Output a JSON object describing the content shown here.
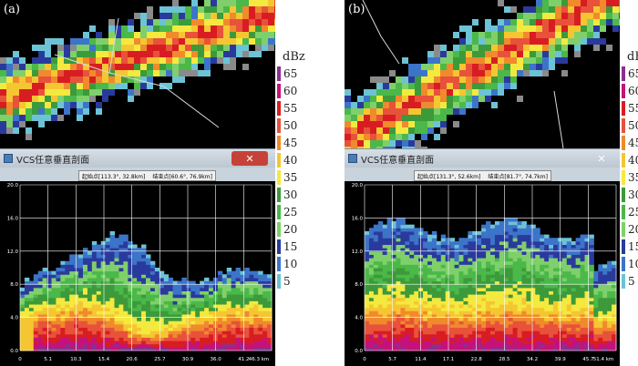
{
  "colors": {
    "bg": "#000000",
    "grid": "#ffffff",
    "text": "#ffffff"
  },
  "panels": [
    {
      "tag": "(a)",
      "window_title": "VCS任意垂直剖面",
      "close_label": "✕",
      "start_label": "起始点",
      "start_value": "[113.3°, 32.8km]",
      "end_label": "结束点",
      "end_value": "[60.6°, 76.9km]",
      "y_ticks": [
        "20.0",
        "16.0",
        "12.0",
        "8.0",
        "4.0",
        "0.0"
      ],
      "x_ticks": [
        "0",
        "5.1",
        "10.3",
        "15.4",
        "20.6",
        "25.7",
        "30.9",
        "36.0",
        "41.2",
        "46.3 km"
      ]
    },
    {
      "tag": "(b)",
      "window_title": "VCS任意垂直剖面",
      "close_label": "✕",
      "start_label": "起始点",
      "start_value": "[131.3°, 52.6km]",
      "end_label": "结束点",
      "end_value": "[81.7°, 74.7km]",
      "y_ticks": [
        "20.0",
        "16.0",
        "12.0",
        "8.0",
        "4.0",
        "0.0"
      ],
      "x_ticks": [
        "0",
        "5.7",
        "11.4",
        "17.1",
        "22.8",
        "28.5",
        "34.2",
        "39.9",
        "45.7",
        "51.4 km"
      ]
    }
  ],
  "legend": {
    "unit": "dBz",
    "levels": [
      {
        "label": "65",
        "color": "#8b2f8f"
      },
      {
        "label": "60",
        "color": "#c4127a"
      },
      {
        "label": "55",
        "color": "#d81d22"
      },
      {
        "label": "50",
        "color": "#e8523a"
      },
      {
        "label": "45",
        "color": "#f08a2c"
      },
      {
        "label": "40",
        "color": "#f5c632"
      },
      {
        "label": "35",
        "color": "#f4e93f"
      },
      {
        "label": "30",
        "color": "#3d9a3a"
      },
      {
        "label": "25",
        "color": "#4bb84a"
      },
      {
        "label": "20",
        "color": "#7fd06a"
      },
      {
        "label": "15",
        "color": "#2a3a9c"
      },
      {
        "label": "10",
        "color": "#3c74c9"
      },
      {
        "label": "5",
        "color": "#6cc3d6"
      }
    ]
  }
}
